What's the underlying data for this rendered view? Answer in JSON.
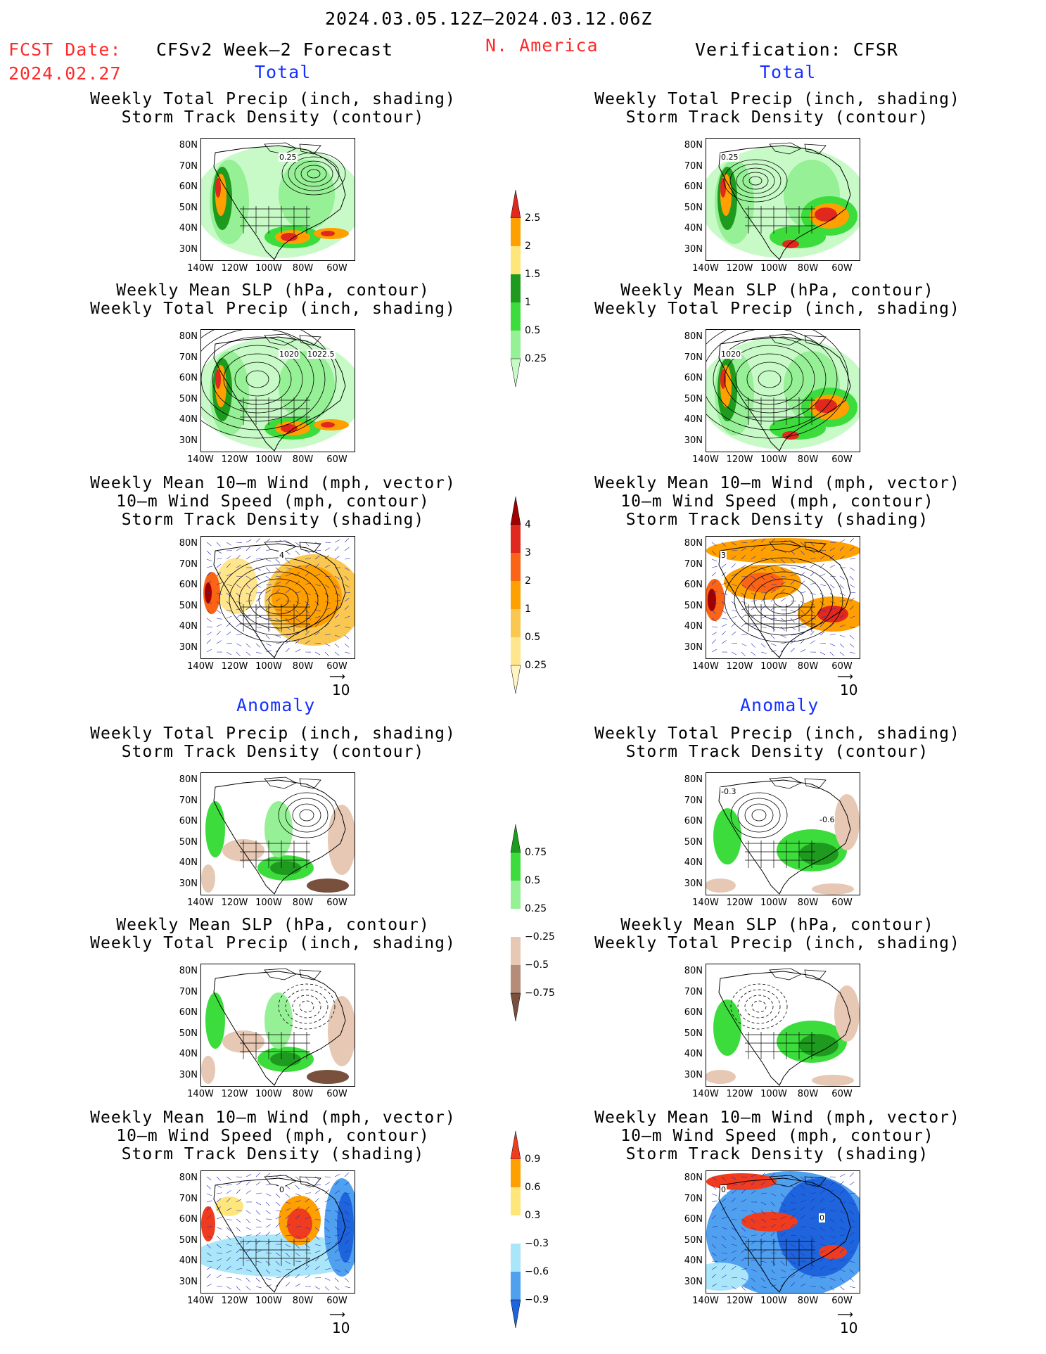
{
  "header": {
    "period": "2024.03.05.12Z–2024.03.12.06Z",
    "fcst_label": "FCST Date:",
    "fcst_date": "2024.02.27",
    "model": "CFSv2 Week–2 Forecast",
    "region": "N. America",
    "verification": "Verification: CFSR"
  },
  "sections": {
    "total": "Total",
    "anomaly": "Anomaly"
  },
  "titles": {
    "precip_track": [
      "Weekly Total Precip (inch, shading)",
      "Storm Track Density (contour)"
    ],
    "slp_precip": [
      "Weekly Mean SLP (hPa, contour)",
      "Weekly Total Precip (inch, shading)"
    ],
    "wind_track": [
      "Weekly Mean 10–m Wind (mph, vector)",
      "10–m Wind Speed (mph, contour)",
      "Storm Track Density (shading)"
    ]
  },
  "axes": {
    "lat_labels": [
      "80N",
      "70N",
      "60N",
      "50N",
      "40N",
      "30N"
    ],
    "lon_labels": [
      "140W",
      "120W",
      "100W",
      "80W",
      "60W"
    ]
  },
  "vector_ref": "10",
  "map_annotations": {
    "fcst_precip_track": [
      "0.25"
    ],
    "fcst_slp": [
      "1020",
      "1022.5"
    ],
    "fcst_wind": [
      "4"
    ],
    "obs_precip_track": [
      "0.25"
    ],
    "obs_slp": [
      "1020"
    ],
    "obs_wind": [
      "3"
    ],
    "anom_obs_precip_track": [
      "-0.3",
      "-0.6"
    ],
    "anom_obs_wind": [
      "0",
      "0"
    ],
    "anom_fcst_wind": [
      "0"
    ]
  },
  "colorbars": {
    "precip_total": {
      "labels": [
        "2.5",
        "2",
        "1.5",
        "1",
        "0.5",
        "0.25"
      ],
      "colors": [
        "#e0281e",
        "#ffa000",
        "#ffe67a",
        "#1e9b1e",
        "#3cdc3c",
        "#96f096",
        "#c8fac8"
      ]
    },
    "track_total": {
      "labels": [
        "4",
        "3",
        "2",
        "1",
        "0.5",
        "0.25"
      ],
      "colors": [
        "#a00000",
        "#e0281e",
        "#fa6414",
        "#ffa000",
        "#fac850",
        "#ffe68c",
        "#fff5c0"
      ]
    },
    "precip_anom": {
      "labels": [
        "0.75",
        "0.5",
        "0.25",
        "−0.25",
        "−0.5",
        "−0.75"
      ],
      "colors": [
        "#1e9b1e",
        "#3cdc3c",
        "#96f096",
        "#ffffff",
        "#e6c8b4",
        "#b48c78",
        "#78503c"
      ]
    },
    "track_anom": {
      "labels": [
        "0.9",
        "0.6",
        "0.3",
        "−0.3",
        "−0.6",
        "−0.9"
      ],
      "colors": [
        "#f03c1e",
        "#ffa000",
        "#ffe67a",
        "#ffffff",
        "#aae6fa",
        "#50a0f0",
        "#1e64dc"
      ]
    }
  }
}
